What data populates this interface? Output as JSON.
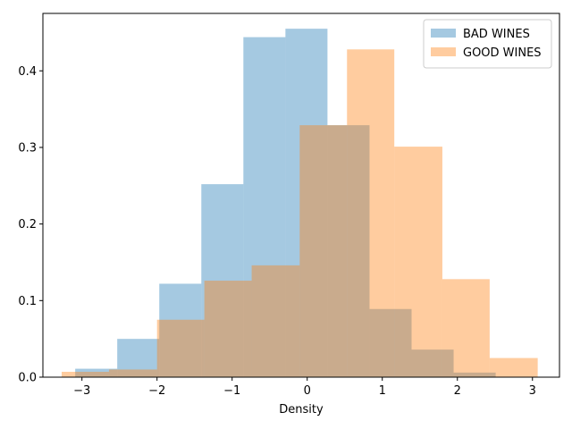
{
  "chart_data": {
    "type": "histogram",
    "title": "",
    "xlabel": "Density",
    "ylabel": "",
    "xlim": [
      -3.52,
      3.36
    ],
    "ylim": [
      0,
      0.475
    ],
    "x_ticks": [
      -3,
      -2,
      -1,
      0,
      1,
      2,
      3
    ],
    "x_tick_labels": [
      "−3",
      "−2",
      "−1",
      "0",
      "1",
      "2",
      "3"
    ],
    "y_ticks": [
      0.0,
      0.1,
      0.2,
      0.3,
      0.4
    ],
    "y_tick_labels": [
      "0.0",
      "0.1",
      "0.2",
      "0.3",
      "0.4"
    ],
    "grid": false,
    "legend_position": "top-right",
    "series": [
      {
        "name": "BAD WINES",
        "color": "#1f77b4",
        "opacity": 0.4,
        "bins": [
          {
            "x0": -3.09,
            "x1": -2.53,
            "value": 0.011
          },
          {
            "x0": -2.53,
            "x1": -1.97,
            "value": 0.05
          },
          {
            "x0": -1.97,
            "x1": -1.41,
            "value": 0.122
          },
          {
            "x0": -1.41,
            "x1": -0.85,
            "value": 0.252
          },
          {
            "x0": -0.85,
            "x1": -0.29,
            "value": 0.444
          },
          {
            "x0": -0.29,
            "x1": 0.27,
            "value": 0.455
          },
          {
            "x0": 0.27,
            "x1": 0.83,
            "value": 0.329
          },
          {
            "x0": 0.83,
            "x1": 1.39,
            "value": 0.089
          },
          {
            "x0": 1.39,
            "x1": 1.95,
            "value": 0.036
          },
          {
            "x0": 1.95,
            "x1": 2.51,
            "value": 0.006
          }
        ]
      },
      {
        "name": "GOOD WINES",
        "color": "#ff7f0e",
        "opacity": 0.4,
        "bins": [
          {
            "x0": -3.27,
            "x1": -2.64,
            "value": 0.007
          },
          {
            "x0": -2.64,
            "x1": -2.0,
            "value": 0.01
          },
          {
            "x0": -2.0,
            "x1": -1.37,
            "value": 0.075
          },
          {
            "x0": -1.37,
            "x1": -0.74,
            "value": 0.126
          },
          {
            "x0": -0.74,
            "x1": -0.1,
            "value": 0.146
          },
          {
            "x0": -0.1,
            "x1": 0.53,
            "value": 0.329
          },
          {
            "x0": 0.53,
            "x1": 1.16,
            "value": 0.428
          },
          {
            "x0": 1.16,
            "x1": 1.8,
            "value": 0.301
          },
          {
            "x0": 1.8,
            "x1": 2.43,
            "value": 0.128
          },
          {
            "x0": 2.43,
            "x1": 3.07,
            "value": 0.025
          }
        ]
      }
    ]
  }
}
